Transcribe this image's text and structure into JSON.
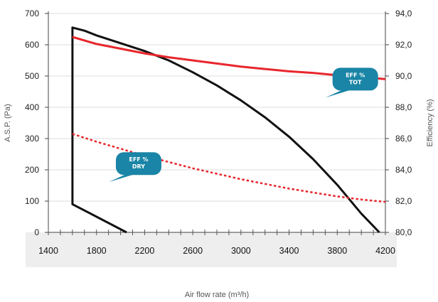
{
  "chart_data": {
    "type": "line",
    "x_axis": {
      "label": "Air flow rate (m³/h)",
      "ticks": [
        1400,
        1800,
        2200,
        2600,
        3000,
        3400,
        3800,
        4200
      ],
      "tick_labels": [
        "1400",
        "1800",
        "2200",
        "2600",
        "3000",
        "3400",
        "3800",
        "4200"
      ],
      "range": [
        1400,
        4200
      ],
      "minor_step": 100
    },
    "y_axis_left": {
      "label": "A.S.P. (Pa)",
      "ticks": [
        0,
        100,
        200,
        300,
        400,
        500,
        600,
        700
      ],
      "tick_labels": [
        "0",
        "100",
        "200",
        "300",
        "400",
        "500",
        "600",
        "700"
      ],
      "range": [
        0,
        700
      ]
    },
    "y_axis_right": {
      "label": "Efficiency (%)",
      "ticks": [
        80,
        82,
        84,
        86,
        88,
        90,
        92,
        94
      ],
      "tick_labels": [
        "80,0",
        "82,0",
        "84,0",
        "86,0",
        "88,0",
        "90,0",
        "92,0",
        "94,0"
      ],
      "range": [
        80,
        94
      ]
    },
    "grid": "horizontal",
    "series": [
      {
        "key": "asp",
        "axis": "left",
        "color": "#111111",
        "style": "solid",
        "points": [
          [
            2050,
            0
          ],
          [
            1600,
            90
          ],
          [
            1600,
            655
          ],
          [
            1700,
            645
          ],
          [
            1800,
            630
          ],
          [
            2000,
            605
          ],
          [
            2200,
            580
          ],
          [
            2400,
            550
          ],
          [
            2600,
            512
          ],
          [
            2800,
            470
          ],
          [
            3000,
            422
          ],
          [
            3200,
            368
          ],
          [
            3400,
            306
          ],
          [
            3600,
            234
          ],
          [
            3800,
            152
          ],
          [
            4000,
            60
          ],
          [
            4150,
            0
          ]
        ]
      },
      {
        "key": "eff_tot",
        "axis": "right",
        "color": "#e8262c",
        "style": "solid",
        "points": [
          [
            1600,
            92.5
          ],
          [
            1800,
            92.05
          ],
          [
            2000,
            91.75
          ],
          [
            2200,
            91.45
          ],
          [
            2400,
            91.2
          ],
          [
            2600,
            91.0
          ],
          [
            2800,
            90.8
          ],
          [
            3000,
            90.6
          ],
          [
            3200,
            90.45
          ],
          [
            3400,
            90.3
          ],
          [
            3600,
            90.2
          ],
          [
            3800,
            90.05
          ],
          [
            4000,
            89.95
          ],
          [
            4200,
            89.8
          ]
        ]
      },
      {
        "key": "eff_dry",
        "axis": "right",
        "color": "#e8262c",
        "style": "dashed",
        "points": [
          [
            1600,
            86.3
          ],
          [
            1800,
            85.8
          ],
          [
            2000,
            85.35
          ],
          [
            2200,
            84.9
          ],
          [
            2400,
            84.5
          ],
          [
            2600,
            84.1
          ],
          [
            2800,
            83.75
          ],
          [
            3000,
            83.4
          ],
          [
            3200,
            83.1
          ],
          [
            3400,
            82.8
          ],
          [
            3600,
            82.55
          ],
          [
            3800,
            82.3
          ],
          [
            4000,
            82.1
          ],
          [
            4200,
            81.95
          ]
        ]
      }
    ],
    "annotations": [
      {
        "key": "tot",
        "text_lines": [
          "EFF %",
          "TOT"
        ],
        "color": "#1a85a6",
        "anchor": [
          3950,
          89.8
        ]
      },
      {
        "key": "dry",
        "text_lines": [
          "EFF %",
          "DRY"
        ],
        "color": "#1a85a6",
        "anchor": [
          2150,
          84.4
        ]
      }
    ]
  }
}
